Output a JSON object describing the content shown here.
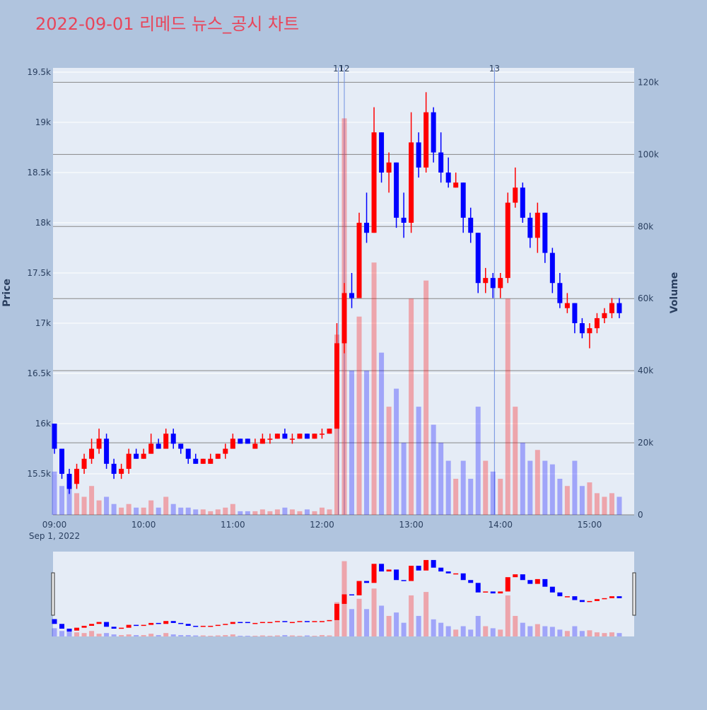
{
  "chart_data": {
    "type": "candlestick",
    "title": "2022-09-01 리메드 뉴스_공시 차트",
    "x": [
      "09:00",
      "09:05",
      "09:10",
      "09:15",
      "09:20",
      "09:25",
      "09:30",
      "09:35",
      "09:40",
      "09:45",
      "09:50",
      "09:55",
      "10:00",
      "10:05",
      "10:10",
      "10:15",
      "10:20",
      "10:25",
      "10:30",
      "10:35",
      "10:40",
      "10:45",
      "10:50",
      "10:55",
      "11:00",
      "11:05",
      "11:10",
      "11:15",
      "11:20",
      "11:25",
      "11:30",
      "11:35",
      "11:40",
      "11:45",
      "11:50",
      "11:55",
      "12:00",
      "12:05",
      "12:10",
      "12:15",
      "12:20",
      "12:25",
      "12:30",
      "12:35",
      "12:40",
      "12:45",
      "12:50",
      "12:55",
      "13:00",
      "13:05",
      "13:10",
      "13:15",
      "13:20",
      "13:25",
      "13:30",
      "13:35",
      "13:40",
      "13:45",
      "13:50",
      "13:55",
      "14:00",
      "14:05",
      "14:10",
      "14:15",
      "14:20",
      "14:25",
      "14:30",
      "14:35",
      "14:40",
      "14:45",
      "14:50",
      "14:55",
      "15:00",
      "15:05",
      "15:10",
      "15:15",
      "15:20"
    ],
    "open": [
      16000,
      15750,
      15500,
      15400,
      15550,
      15650,
      15750,
      15850,
      15600,
      15500,
      15550,
      15700,
      15650,
      15700,
      15800,
      15750,
      15900,
      15800,
      15750,
      15650,
      15600,
      15600,
      15650,
      15700,
      15750,
      15850,
      15850,
      15750,
      15800,
      15850,
      15850,
      15900,
      15850,
      15850,
      15900,
      15850,
      15900,
      15900,
      15950,
      16800,
      17300,
      17250,
      18000,
      17900,
      18900,
      18500,
      18600,
      18050,
      18000,
      18800,
      18550,
      19100,
      18700,
      18500,
      18350,
      18400,
      18050,
      17900,
      17400,
      17450,
      17350,
      17450,
      18200,
      18350,
      18050,
      17850,
      18100,
      17700,
      17400,
      17150,
      17200,
      17000,
      16900,
      16950,
      17050,
      17100,
      17200
    ],
    "high": [
      16000,
      15750,
      15550,
      15600,
      15700,
      15850,
      15950,
      15900,
      15650,
      15600,
      15750,
      15750,
      15750,
      15900,
      15850,
      15950,
      15950,
      15800,
      15750,
      15700,
      15650,
      15700,
      15700,
      15800,
      15900,
      15850,
      15850,
      15850,
      15900,
      15900,
      15900,
      15950,
      15900,
      15900,
      15900,
      15900,
      15950,
      15950,
      17000,
      17400,
      17500,
      18100,
      18300,
      19150,
      18900,
      18700,
      18600,
      18300,
      19100,
      18900,
      19300,
      19150,
      18900,
      18650,
      18500,
      18400,
      18150,
      17900,
      17550,
      17500,
      17500,
      18300,
      18550,
      18400,
      18100,
      18200,
      18100,
      17750,
      17500,
      17300,
      17200,
      17050,
      17000,
      17100,
      17150,
      17250,
      17250
    ],
    "low": [
      15700,
      15450,
      15300,
      15350,
      15500,
      15600,
      15700,
      15550,
      15450,
      15450,
      15500,
      15650,
      15650,
      15700,
      15750,
      15750,
      15750,
      15700,
      15600,
      15600,
      15600,
      15600,
      15650,
      15650,
      15750,
      15800,
      15800,
      15750,
      15800,
      15800,
      15850,
      15850,
      15800,
      15850,
      15850,
      15850,
      15850,
      15900,
      15950,
      16700,
      17150,
      17250,
      17800,
      17900,
      18400,
      18300,
      17950,
      17850,
      17900,
      18450,
      18500,
      18600,
      18400,
      18350,
      18350,
      17900,
      17800,
      17300,
      17300,
      17250,
      17250,
      17400,
      18150,
      18000,
      17750,
      17700,
      17600,
      17300,
      17150,
      17100,
      16900,
      16850,
      16750,
      16900,
      17000,
      17050,
      17050
    ],
    "close": [
      15750,
      15500,
      15350,
      15550,
      15650,
      15750,
      15850,
      15600,
      15500,
      15550,
      15700,
      15650,
      15700,
      15800,
      15750,
      15900,
      15800,
      15750,
      15650,
      15600,
      15650,
      15650,
      15700,
      15750,
      15850,
      15800,
      15800,
      15800,
      15850,
      15850,
      15900,
      15850,
      15850,
      15900,
      15850,
      15900,
      15900,
      15950,
      16800,
      17300,
      17250,
      18000,
      17900,
      18900,
      18500,
      18600,
      18050,
      18000,
      18800,
      18550,
      19100,
      18700,
      18500,
      18400,
      18400,
      18050,
      17900,
      17400,
      17450,
      17350,
      17450,
      18200,
      18350,
      18050,
      17850,
      18100,
      17700,
      17400,
      17200,
      17200,
      17000,
      16900,
      16950,
      17050,
      17100,
      17200,
      17100
    ],
    "volume": [
      12000,
      8000,
      9000,
      6000,
      5000,
      8000,
      4000,
      5000,
      3000,
      2000,
      3000,
      2000,
      2000,
      4000,
      2000,
      5000,
      3000,
      2000,
      2000,
      1500,
      1500,
      1000,
      1500,
      2000,
      3000,
      1000,
      1000,
      1000,
      1500,
      1000,
      1500,
      2000,
      1500,
      1000,
      1500,
      1000,
      2000,
      1500,
      50000,
      110000,
      40000,
      55000,
      40000,
      70000,
      45000,
      30000,
      35000,
      20000,
      60000,
      30000,
      65000,
      25000,
      20000,
      15000,
      10000,
      15000,
      10000,
      30000,
      15000,
      12000,
      10000,
      60000,
      30000,
      20000,
      15000,
      18000,
      15000,
      14000,
      10000,
      8000,
      15000,
      8000,
      9000,
      6000,
      5000,
      6000,
      5000
    ],
    "up_color": "#ff0000",
    "down_color": "#0000ff",
    "xlim": [
      "09:00",
      "15:30"
    ],
    "xticks": [
      "09:00",
      "10:00",
      "11:00",
      "12:00",
      "13:00",
      "14:00",
      "15:00"
    ],
    "x_date_label": "Sep 1, 2022",
    "ylim": [
      15092,
      19542
    ],
    "yticks": [
      {
        "value": 15500,
        "label": "15.5k"
      },
      {
        "value": 16000,
        "label": "16k"
      },
      {
        "value": 16500,
        "label": "16.5k"
      },
      {
        "value": 17000,
        "label": "17k"
      },
      {
        "value": 17500,
        "label": "17.5k"
      },
      {
        "value": 18000,
        "label": "18k"
      },
      {
        "value": 18500,
        "label": "18.5k"
      },
      {
        "value": 19000,
        "label": "19k"
      },
      {
        "value": 19500,
        "label": "19.5k"
      }
    ],
    "y_label": "Price",
    "y2lim": [
      0,
      124000
    ],
    "y2ticks": [
      0,
      {
        "value": 20000,
        "label": "20k"
      },
      {
        "value": 40000,
        "label": "40k"
      },
      {
        "value": 60000,
        "label": "60k"
      },
      {
        "value": 80000,
        "label": "80k"
      },
      {
        "value": 100000,
        "label": "100k"
      },
      {
        "value": 120000,
        "label": "120k"
      }
    ],
    "y2_label": "Volume",
    "news_lines": [
      {
        "x": "12:11",
        "label": "11"
      },
      {
        "x": "12:15",
        "label": "12"
      },
      {
        "x": "13:56",
        "label": "13"
      }
    ],
    "grid": true,
    "range_slider": true
  }
}
